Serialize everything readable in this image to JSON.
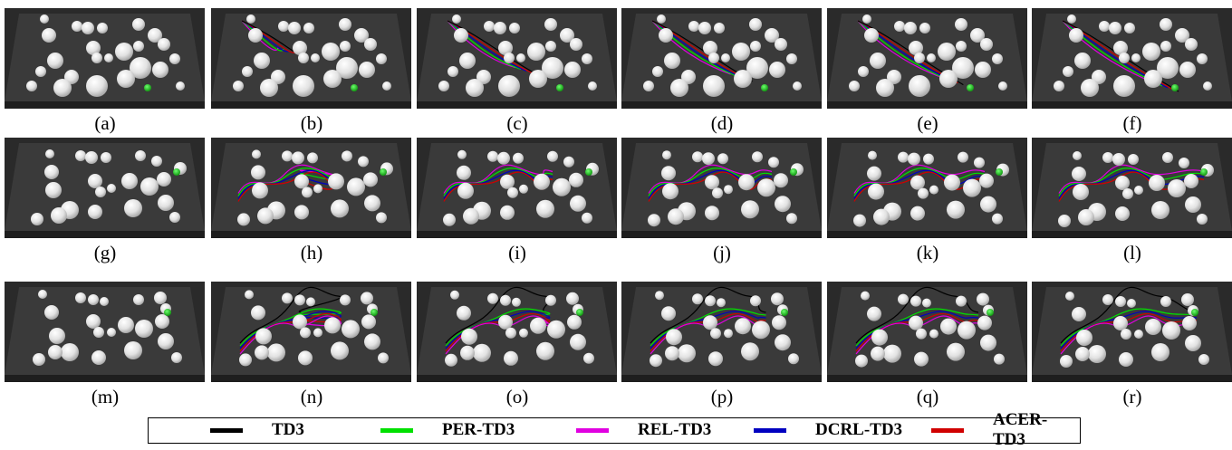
{
  "panel_labels": [
    "(a)",
    "(b)",
    "(c)",
    "(d)",
    "(e)",
    "(f)",
    "(g)",
    "(h)",
    "(i)",
    "(j)",
    "(k)",
    "(l)",
    "(m)",
    "(n)",
    "(o)",
    "(p)",
    "(q)",
    "(r)"
  ],
  "legend": [
    {
      "label": "TD3",
      "color": "#000000"
    },
    {
      "label": "PER-TD3",
      "color": "#00e000"
    },
    {
      "label": "REL-TD3",
      "color": "#e000e0"
    },
    {
      "label": "DCRL-TD3",
      "color": "#0000c0"
    },
    {
      "label": "ACER-TD3",
      "color": "#d00000"
    }
  ],
  "colors": {
    "floor": "#3a3a3a",
    "floor_edge": "#1e1e1e",
    "goal": "#1fc21f",
    "obstacle": "#e6e6e6"
  }
}
